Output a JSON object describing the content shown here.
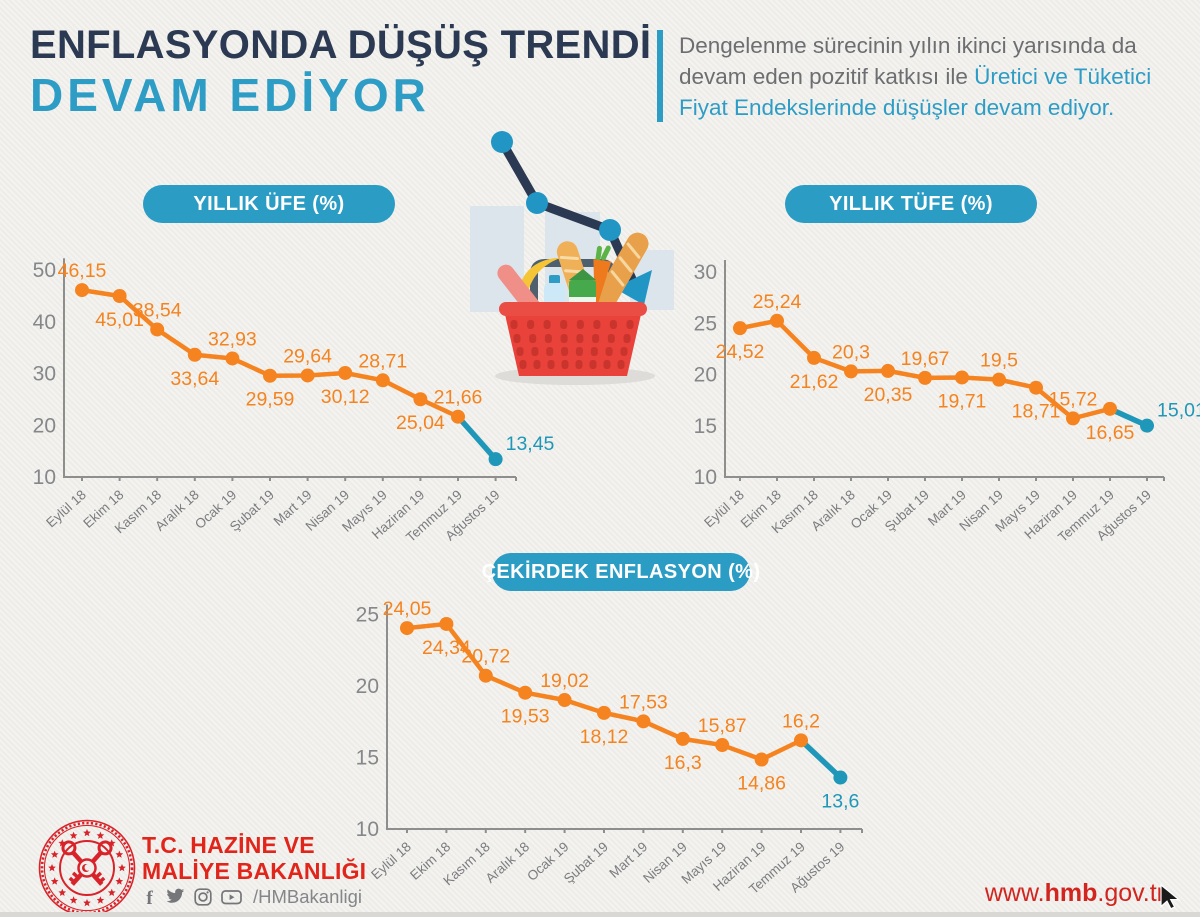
{
  "colors": {
    "background": "#f0efeb",
    "navy": "#2b3a52",
    "teal_accent": "#2e9dc6",
    "teal_line": "#1e97b9",
    "orange": "#f5831f",
    "gray_text": "#6d6e71",
    "axis_gray": "#8e8e8e",
    "red": "#d8232a"
  },
  "header": {
    "title_line1": "ENFLASYONDA DÜŞÜŞ TRENDİ",
    "title_line2": "DEVAM EDİYOR",
    "desc": [
      {
        "gray": "Dengelenme sürecinin yılın ikinci yarısında da",
        "teal": ""
      },
      {
        "gray": "devam eden pozitif katkısı ile ",
        "teal": "Üretici ve Tüketici"
      },
      {
        "gray": "",
        "teal": "Fiyat Endekslerinde düşüşler devam ediyor."
      }
    ]
  },
  "chart_data": [
    {
      "id": "yillik-ufe",
      "type": "line",
      "title": "YILLIK ÜFE (%)",
      "categories": [
        "Eylül 18",
        "Ekim 18",
        "Kasım 18",
        "Aralık 18",
        "Ocak 19",
        "Şubat 19",
        "Mart 19",
        "Nisan 19",
        "Mayıs 19",
        "Haziran 19",
        "Temmuz 19",
        "Ağustos 19"
      ],
      "values": [
        46.15,
        45.01,
        38.54,
        33.64,
        32.93,
        29.59,
        29.64,
        30.12,
        28.71,
        25.04,
        21.66,
        13.45
      ],
      "labels": [
        "46,15",
        "45,01",
        "38,54",
        "33,64",
        "32,93",
        "29,59",
        "29,64",
        "30,12",
        "28,71",
        "25,04",
        "21,66",
        "13,45"
      ],
      "label_pos": [
        "a",
        "b",
        "a",
        "b",
        "a",
        "b",
        "a",
        "b",
        "a",
        "b",
        "a",
        "ra"
      ],
      "ylim": [
        10,
        50
      ],
      "yticks": [
        10,
        20,
        30,
        40,
        50
      ],
      "grid": false,
      "legend": "none",
      "series_color": "#f5831f",
      "last_segment_color": "#1e97b9"
    },
    {
      "id": "yillik-tufe",
      "type": "line",
      "title": "YILLIK TÜFE (%)",
      "categories": [
        "Eylül 18",
        "Ekim 18",
        "Kasım 18",
        "Aralık 18",
        "Ocak 19",
        "Şubat 19",
        "Mart 19",
        "Nisan 19",
        "Mayıs 19",
        "Haziran 19",
        "Temmuz 19",
        "Ağustos 19"
      ],
      "values": [
        24.52,
        25.24,
        21.62,
        20.3,
        20.35,
        19.67,
        19.71,
        19.5,
        18.71,
        15.72,
        16.65,
        15.01
      ],
      "labels": [
        "24,52",
        "25,24",
        "21,62",
        "20,3",
        "20,35",
        "19,67",
        "19,71",
        "19,5",
        "18,71",
        "15,72",
        "16,65",
        "15,01"
      ],
      "label_pos": [
        "b",
        "a",
        "b",
        "a",
        "b",
        "a",
        "b",
        "a",
        "b",
        "a",
        "b",
        "ra"
      ],
      "ylim": [
        10,
        30
      ],
      "yticks": [
        10,
        15,
        20,
        25,
        30
      ],
      "grid": false,
      "legend": "none",
      "series_color": "#f5831f",
      "last_segment_color": "#1e97b9"
    },
    {
      "id": "cekirdek-enflasyon",
      "type": "line",
      "title": "ÇEKİRDEK ENFLASYON (%)",
      "categories": [
        "Eylül 18",
        "Ekim 18",
        "Kasım 18",
        "Aralık 18",
        "Ocak 19",
        "Şubat 19",
        "Mart 19",
        "Nisan 19",
        "Mayıs 19",
        "Haziran 19",
        "Temmuz 19",
        "Ağustos 19"
      ],
      "values": [
        24.05,
        24.34,
        20.72,
        19.53,
        19.02,
        18.12,
        17.53,
        16.3,
        15.87,
        14.86,
        16.2,
        13.6
      ],
      "labels": [
        "24,05",
        "24,34",
        "20,72",
        "19,53",
        "19,02",
        "18,12",
        "17,53",
        "16,3",
        "15,87",
        "14,86",
        "16,2",
        "13,6"
      ],
      "label_pos": [
        "a",
        "b",
        "a",
        "b",
        "a",
        "b",
        "a",
        "b",
        "a",
        "b",
        "a",
        "b"
      ],
      "ylim": [
        10,
        25
      ],
      "yticks": [
        10,
        15,
        20,
        25
      ],
      "grid": false,
      "legend": "none",
      "series_color": "#f5831f",
      "last_segment_color": "#1e97b9"
    }
  ],
  "footer": {
    "ministry_line1": "T.C. HAZİNE VE",
    "ministry_line2": "MALİYE BAKANLIĞI",
    "social_icons": [
      "facebook-icon",
      "twitter-icon",
      "instagram-icon",
      "youtube-icon"
    ],
    "social_handle": "/HMBakanligi",
    "website_prefix": "www.",
    "website_bold": "hmb",
    "website_suffix": ".gov.tr"
  }
}
